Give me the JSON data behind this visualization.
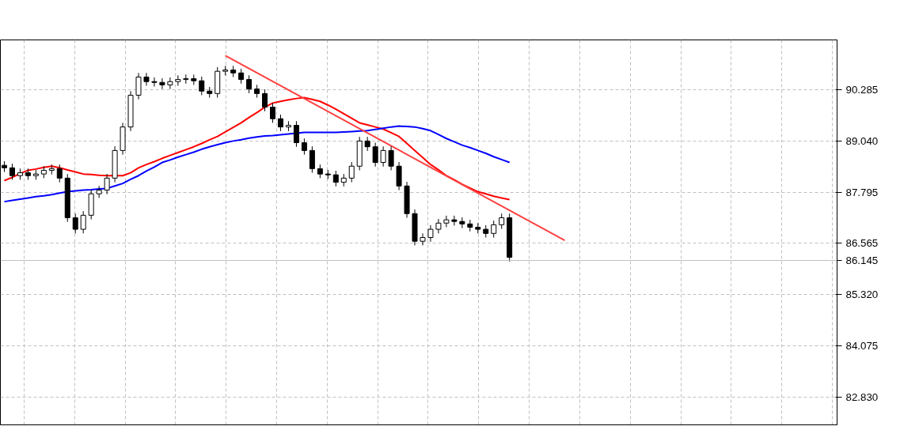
{
  "chart_data": {
    "type": "candlestick",
    "categories": [
      null,
      null,
      null,
      null,
      null,
      null,
      null,
      null,
      null,
      null,
      null,
      null,
      null,
      null,
      null,
      null,
      null,
      null,
      null,
      null,
      null,
      null,
      null,
      null,
      null,
      null,
      null,
      null,
      null,
      null,
      null,
      null,
      null,
      null,
      null,
      null,
      null,
      null,
      null,
      null,
      null,
      null,
      null,
      null,
      null,
      null,
      null,
      null,
      null,
      null,
      null,
      null,
      null,
      null,
      null,
      null,
      null,
      null,
      null,
      null,
      null,
      null,
      null,
      null,
      null,
      null,
      null,
      null,
      null,
      null,
      null,
      null,
      null,
      null,
      null,
      null,
      null,
      null,
      null,
      null,
      null,
      null,
      null,
      null,
      null,
      null,
      null,
      null,
      null,
      null,
      null,
      null,
      null,
      null,
      null,
      null,
      null,
      null,
      null,
      null,
      null,
      null,
      null,
      null,
      null,
      null
    ],
    "ohlc": [
      [
        88.45,
        88.55,
        88.29,
        88.39
      ],
      [
        88.39,
        88.49,
        88.1,
        88.2
      ],
      [
        88.2,
        88.37,
        88.1,
        88.27
      ],
      [
        88.27,
        88.37,
        88.1,
        88.2
      ],
      [
        88.2,
        88.34,
        88.1,
        88.24
      ],
      [
        88.24,
        88.43,
        88.14,
        88.33
      ],
      [
        88.33,
        88.47,
        88.23,
        88.37
      ],
      [
        88.37,
        88.47,
        88.04,
        88.14
      ],
      [
        88.14,
        88.24,
        87.08,
        87.18
      ],
      [
        87.18,
        87.28,
        86.8,
        86.9
      ],
      [
        86.9,
        87.34,
        86.8,
        87.24
      ],
      [
        87.24,
        87.86,
        87.14,
        87.76
      ],
      [
        87.76,
        87.95,
        87.66,
        87.85
      ],
      [
        87.85,
        88.24,
        87.75,
        88.14
      ],
      [
        88.14,
        88.91,
        88.04,
        88.81
      ],
      [
        88.81,
        89.48,
        88.71,
        89.38
      ],
      [
        89.38,
        90.25,
        89.28,
        90.15
      ],
      [
        90.15,
        90.69,
        90.05,
        90.59
      ],
      [
        90.59,
        90.69,
        90.38,
        90.48
      ],
      [
        90.48,
        90.58,
        90.36,
        90.46
      ],
      [
        90.46,
        90.56,
        90.3,
        90.4
      ],
      [
        90.4,
        90.58,
        90.3,
        90.48
      ],
      [
        90.48,
        90.63,
        90.38,
        90.53
      ],
      [
        90.53,
        90.65,
        90.43,
        90.55
      ],
      [
        90.55,
        90.65,
        90.4,
        90.5
      ],
      [
        90.5,
        90.6,
        90.15,
        90.25
      ],
      [
        90.25,
        90.35,
        90.09,
        90.19
      ],
      [
        90.19,
        90.83,
        90.09,
        90.73
      ],
      [
        90.73,
        90.86,
        90.63,
        90.76
      ],
      [
        90.76,
        90.86,
        90.59,
        90.69
      ],
      [
        90.69,
        90.79,
        90.43,
        90.53
      ],
      [
        90.53,
        90.63,
        90.2,
        90.3
      ],
      [
        90.3,
        90.4,
        90.09,
        90.19
      ],
      [
        90.19,
        90.29,
        89.76,
        89.86
      ],
      [
        89.86,
        89.96,
        89.48,
        89.58
      ],
      [
        89.58,
        89.68,
        89.28,
        89.38
      ],
      [
        89.38,
        89.52,
        89.28,
        89.42
      ],
      [
        89.42,
        89.52,
        88.9,
        89.0
      ],
      [
        89.0,
        89.1,
        88.71,
        88.81
      ],
      [
        88.81,
        88.91,
        88.27,
        88.37
      ],
      [
        88.37,
        88.47,
        88.14,
        88.24
      ],
      [
        88.24,
        88.34,
        88.12,
        88.22
      ],
      [
        88.22,
        88.32,
        87.94,
        88.04
      ],
      [
        88.04,
        88.24,
        87.94,
        88.14
      ],
      [
        88.14,
        88.53,
        88.04,
        88.43
      ],
      [
        88.43,
        89.14,
        88.33,
        89.04
      ],
      [
        89.04,
        89.14,
        88.8,
        88.9
      ],
      [
        88.9,
        89.0,
        88.42,
        88.52
      ],
      [
        88.52,
        88.91,
        88.42,
        88.81
      ],
      [
        88.81,
        88.91,
        88.33,
        88.43
      ],
      [
        88.43,
        88.53,
        87.85,
        87.95
      ],
      [
        87.95,
        88.05,
        87.18,
        87.28
      ],
      [
        87.28,
        87.38,
        86.51,
        86.61
      ],
      [
        86.61,
        86.8,
        86.51,
        86.7
      ],
      [
        86.7,
        87.0,
        86.6,
        86.9
      ],
      [
        86.9,
        87.15,
        86.8,
        87.05
      ],
      [
        87.05,
        87.23,
        86.95,
        87.13
      ],
      [
        87.13,
        87.23,
        86.99,
        87.09
      ],
      [
        87.09,
        87.19,
        86.93,
        87.03
      ],
      [
        87.03,
        87.13,
        86.85,
        86.95
      ],
      [
        86.95,
        87.05,
        86.8,
        86.9
      ],
      [
        86.9,
        87.0,
        86.7,
        86.8
      ],
      [
        86.8,
        87.11,
        86.7,
        87.01
      ],
      [
        87.01,
        87.28,
        86.91,
        87.18
      ],
      [
        87.18,
        87.28,
        86.12,
        86.22
      ],
      null,
      null,
      null,
      null,
      null,
      null,
      null,
      null,
      null,
      null,
      null,
      null,
      null,
      null,
      null,
      null,
      null,
      null,
      null,
      null,
      null,
      null,
      null,
      null,
      null,
      null,
      null,
      null,
      null,
      null,
      null,
      null,
      null,
      null,
      null,
      null,
      null,
      null,
      null,
      null,
      null
    ],
    "series": [
      {
        "type": "line",
        "color": "#ff0000",
        "values": [
          88.08,
          88.16,
          88.25,
          88.33,
          88.36,
          88.4,
          88.43,
          88.39,
          88.34,
          88.29,
          88.24,
          88.23,
          88.21,
          88.2,
          88.2,
          88.2,
          88.27,
          88.39,
          88.47,
          88.54,
          88.62,
          88.69,
          88.76,
          88.83,
          88.9,
          88.98,
          89.07,
          89.15,
          89.26,
          89.37,
          89.48,
          89.61,
          89.73,
          89.86,
          89.96,
          90.0,
          90.04,
          90.07,
          90.09,
          90.05,
          90.0,
          89.91,
          89.81,
          89.7,
          89.59,
          89.48,
          89.43,
          89.38,
          89.33,
          89.24,
          89.15,
          88.98,
          88.81,
          88.64,
          88.47,
          88.34,
          88.2,
          88.1,
          87.99,
          87.9,
          87.81,
          87.76,
          87.7,
          87.66,
          87.62,
          null,
          null,
          null,
          null,
          null,
          null,
          null,
          null,
          null,
          null,
          null,
          null,
          null,
          null,
          null,
          null,
          null,
          null,
          null,
          null,
          null,
          null,
          null,
          null,
          null,
          null,
          null,
          null,
          null,
          null,
          null,
          null,
          null,
          null,
          null,
          null,
          null,
          null,
          null,
          null,
          null
        ]
      },
      {
        "type": "line",
        "color": "#0000ff",
        "values": [
          87.57,
          87.6,
          87.63,
          87.66,
          87.69,
          87.71,
          87.74,
          87.78,
          87.81,
          87.83,
          87.85,
          87.86,
          87.88,
          87.89,
          87.95,
          88.01,
          88.11,
          88.2,
          88.31,
          88.41,
          88.52,
          88.58,
          88.65,
          88.71,
          88.77,
          88.84,
          88.9,
          88.95,
          89.0,
          89.04,
          89.07,
          89.11,
          89.14,
          89.16,
          89.17,
          89.19,
          89.21,
          89.23,
          89.25,
          89.25,
          89.25,
          89.25,
          89.25,
          89.26,
          89.27,
          89.28,
          89.29,
          89.32,
          89.35,
          89.38,
          89.4,
          89.39,
          89.38,
          89.34,
          89.29,
          89.2,
          89.1,
          89.02,
          88.94,
          88.88,
          88.81,
          88.74,
          88.66,
          88.59,
          88.52,
          null,
          null,
          null,
          null,
          null,
          null,
          null,
          null,
          null,
          null,
          null,
          null,
          null,
          null,
          null,
          null,
          null,
          null,
          null,
          null,
          null,
          null,
          null,
          null,
          null,
          null,
          null,
          null,
          null,
          null,
          null,
          null,
          null,
          null,
          null,
          null,
          null,
          null,
          null,
          null,
          null
        ]
      },
      {
        "type": "line",
        "color": "#ff4040",
        "values": [
          null,
          null,
          null,
          null,
          null,
          null,
          null,
          null,
          null,
          null,
          null,
          null,
          null,
          null,
          null,
          null,
          null,
          null,
          null,
          null,
          null,
          null,
          null,
          null,
          null,
          null,
          null,
          null,
          91.11,
          null,
          null,
          null,
          null,
          null,
          null,
          null,
          null,
          null,
          null,
          null,
          null,
          null,
          null,
          null,
          null,
          null,
          null,
          null,
          null,
          null,
          null,
          null,
          null,
          null,
          null,
          null,
          null,
          null,
          null,
          null,
          null,
          null,
          null,
          null,
          null,
          null,
          null,
          null,
          null,
          null,
          null,
          86.63,
          null,
          null,
          null,
          null,
          null,
          null,
          null,
          null,
          null,
          null,
          null,
          null,
          null,
          null,
          null,
          null,
          null,
          null,
          null,
          null,
          null,
          null,
          null,
          null,
          null,
          null,
          null,
          null,
          null,
          null,
          null,
          null,
          null,
          null
        ]
      }
    ],
    "ylim": [
      82.16,
      91.49
    ],
    "yticks": [
      90.285,
      {
        "value": 89.04,
        "label": "89.040"
      },
      87.795,
      86.565,
      {
        "value": 85.32,
        "label": "85.320"
      },
      84.075,
      {
        "value": 82.83,
        "label": "82.830"
      }
    ],
    "tick_labels": "y",
    "grid": true,
    "ref_lines": [
      {
        "axis": "y",
        "value": 86.145,
        "label": "86.145",
        "color": "#c0c0c0"
      }
    ]
  }
}
